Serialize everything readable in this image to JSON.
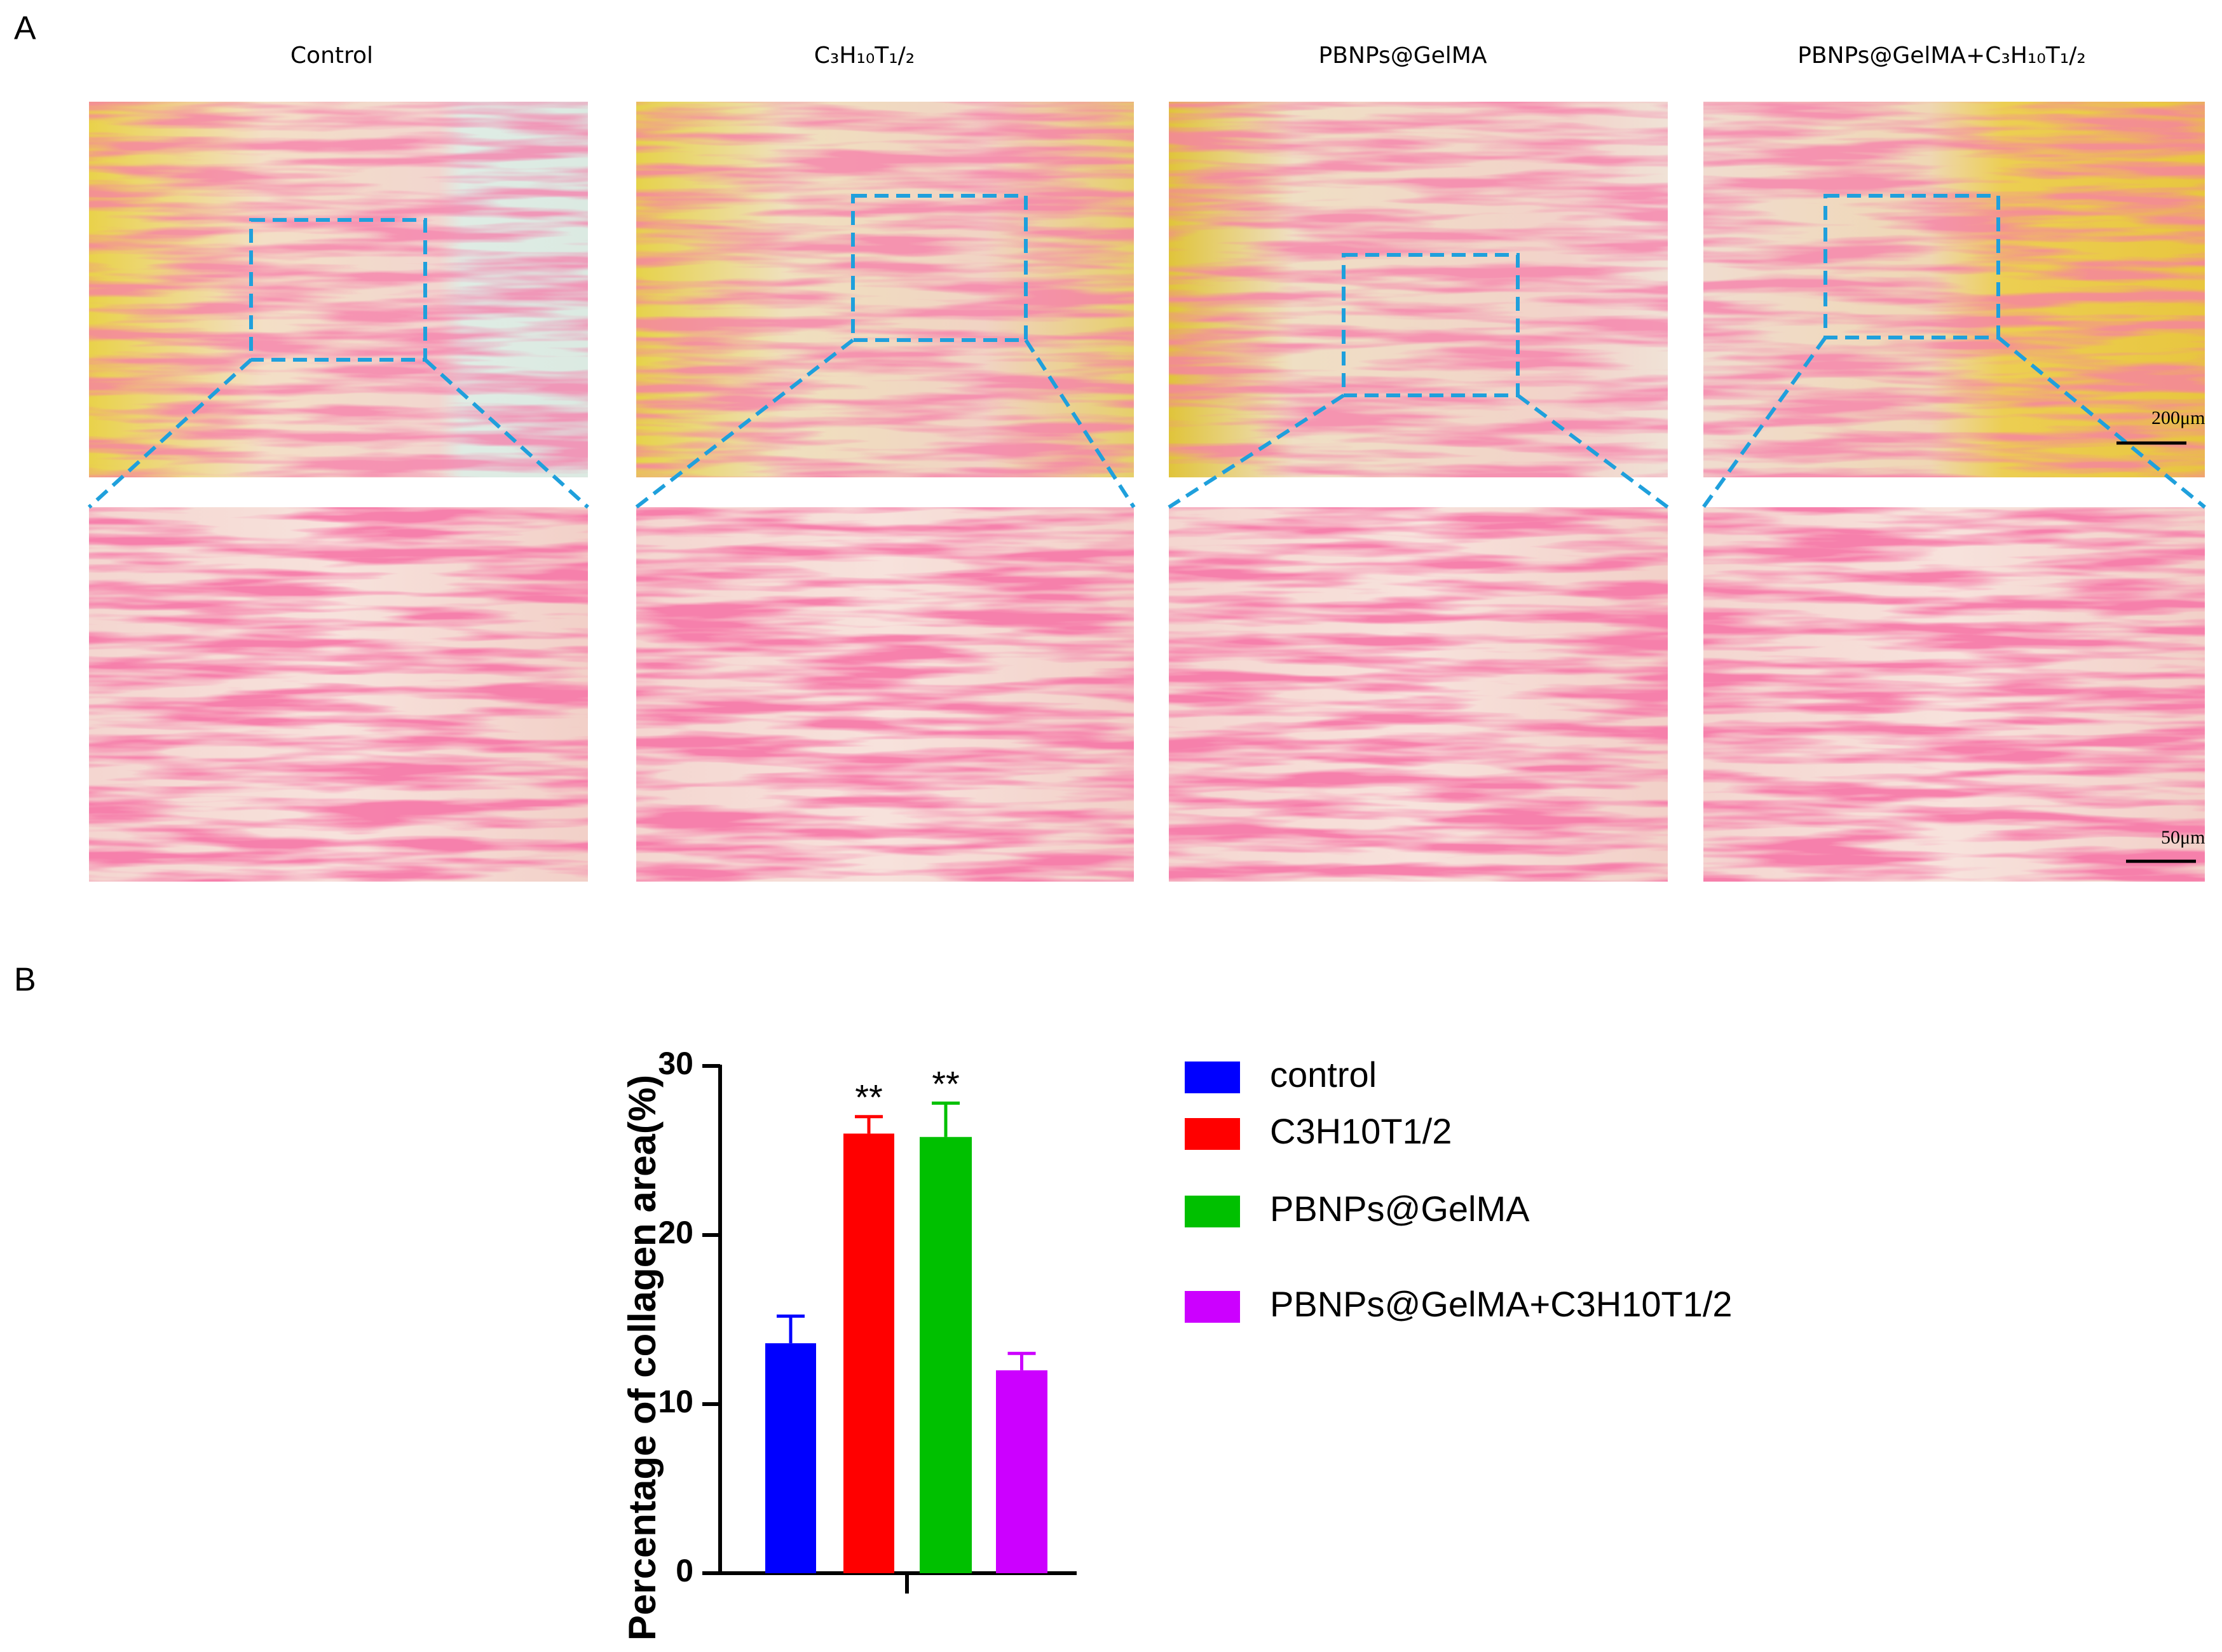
{
  "panel_a": {
    "label": "A",
    "columns": [
      "Control",
      "C₃H₁₀T₁/₂",
      "PBNPs@GelMA",
      "PBNPs@GelMA+C₃H₁₀T₁/₂"
    ],
    "scale_bars": [
      "200μm",
      "50μm"
    ]
  },
  "panel_b": {
    "label": "B"
  },
  "chart_data": {
    "type": "bar",
    "ylabel": "Percentage of collagen area(%)",
    "categories": [
      null
    ],
    "ylim": [
      0,
      30
    ],
    "yticks": [
      0,
      10,
      20,
      30
    ],
    "series": [
      {
        "name": "control",
        "color": "#0000ff",
        "values": [
          13.6
        ],
        "errors": [
          1.6
        ]
      },
      {
        "name": "C3H10T1/2",
        "color": "#ff0000",
        "values": [
          26.0
        ],
        "errors": [
          1.0
        ],
        "annotation": "**"
      },
      {
        "name": "PBNPs@GelMA",
        "color": "#00c000",
        "values": [
          25.8
        ],
        "errors": [
          2.0
        ],
        "annotation": "**"
      },
      {
        "name": "PBNPs@GelMA+C3H10T1/2",
        "color": "#cc00ff",
        "values": [
          12.0
        ],
        "errors": [
          1.0
        ]
      }
    ]
  }
}
